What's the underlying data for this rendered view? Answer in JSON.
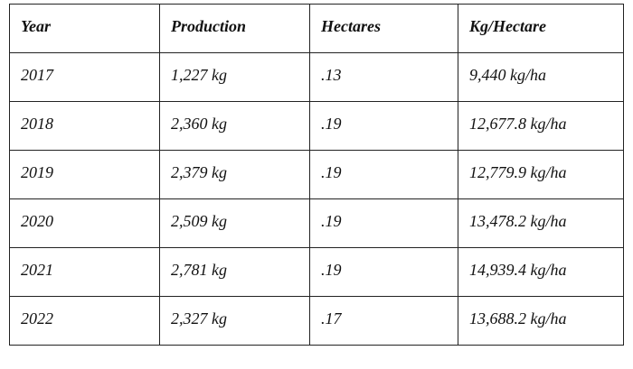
{
  "table": {
    "header": [
      "Year",
      "Production",
      "Hectares",
      "Kg/Hectare"
    ],
    "rows": [
      [
        "2017",
        "1,227 kg",
        ".13",
        "9,440 kg/ha"
      ],
      [
        "2018",
        "2,360 kg",
        ".19",
        "12,677.8 kg/ha"
      ],
      [
        "2019",
        "2,379 kg",
        ".19",
        "12,779.9 kg/ha"
      ],
      [
        "2020",
        "2,509 kg",
        ".19",
        "13,478.2 kg/ha"
      ],
      [
        "2021",
        "2,781 kg",
        ".19",
        "14,939.4 kg/ha"
      ],
      [
        "2022",
        "2,327 kg",
        ".17",
        "13,688.2 kg/ha"
      ]
    ]
  }
}
